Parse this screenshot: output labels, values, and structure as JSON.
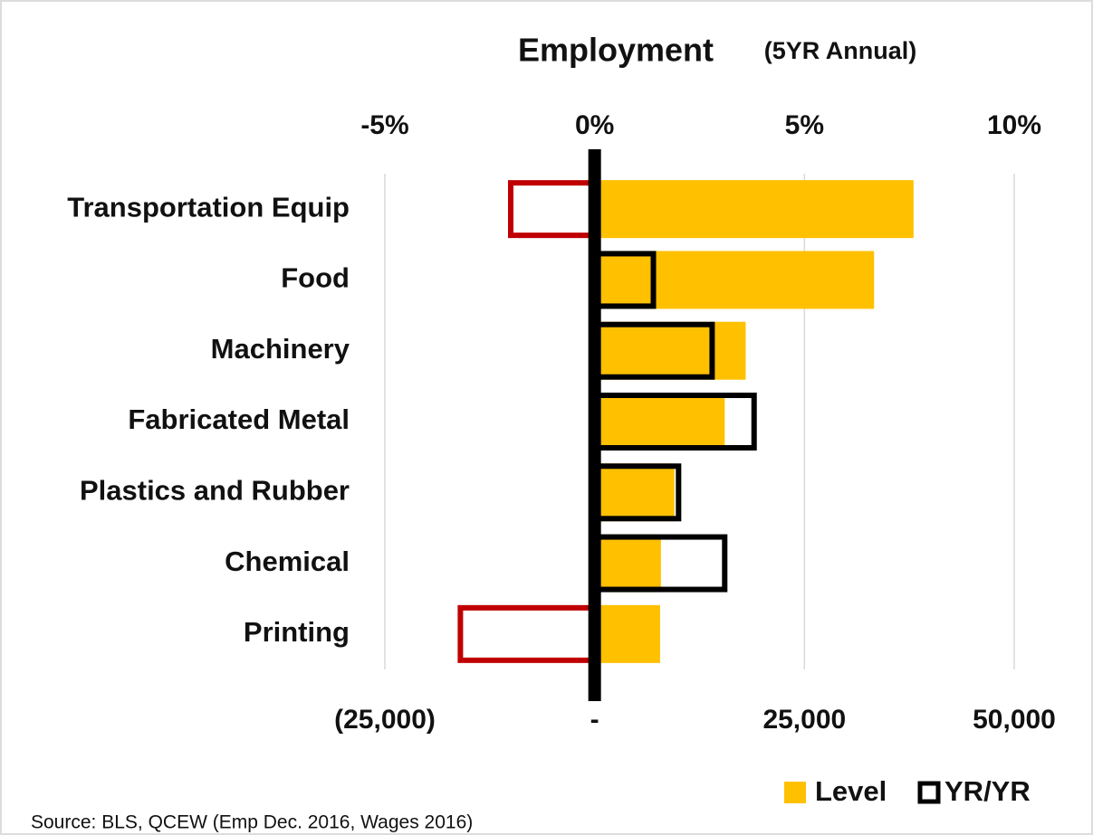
{
  "chart_data": {
    "type": "hbar",
    "title": "Employment",
    "subtitle": "(5YR Annual)",
    "source": "Source: BLS, QCEW (Emp Dec. 2016, Wages 2016)",
    "categories": [
      "Transportation Equip",
      "Food",
      "Machinery",
      "Fabricated Metal",
      "Plastics and Rubber",
      "Chemical",
      "Printing"
    ],
    "series": [
      {
        "name": "Level",
        "color": "#ffc000",
        "values": [
          38000,
          33300,
          18000,
          15500,
          9500,
          7900,
          7800
        ]
      },
      {
        "name": "YR/YR",
        "color": "#000000",
        "negative_color": "#c00000",
        "axis": "x2",
        "values": [
          -2.0,
          1.4,
          2.8,
          3.8,
          2.0,
          3.1,
          -3.2
        ]
      }
    ],
    "xlim": [
      -25000,
      50000
    ],
    "xticks": [
      {
        "value": -25000,
        "label": "(25,000)"
      },
      {
        "value": 0,
        "label": "-"
      },
      {
        "value": 25000,
        "label": "25,000"
      },
      {
        "value": 50000,
        "label": "50,000"
      }
    ],
    "x2lim": [
      -5,
      10
    ],
    "x2ticks": [
      {
        "value": -5,
        "label": "-5%"
      },
      {
        "value": 0,
        "label": "0%"
      },
      {
        "value": 5,
        "label": "5%"
      },
      {
        "value": 10,
        "label": "10%"
      }
    ],
    "grid": true
  }
}
